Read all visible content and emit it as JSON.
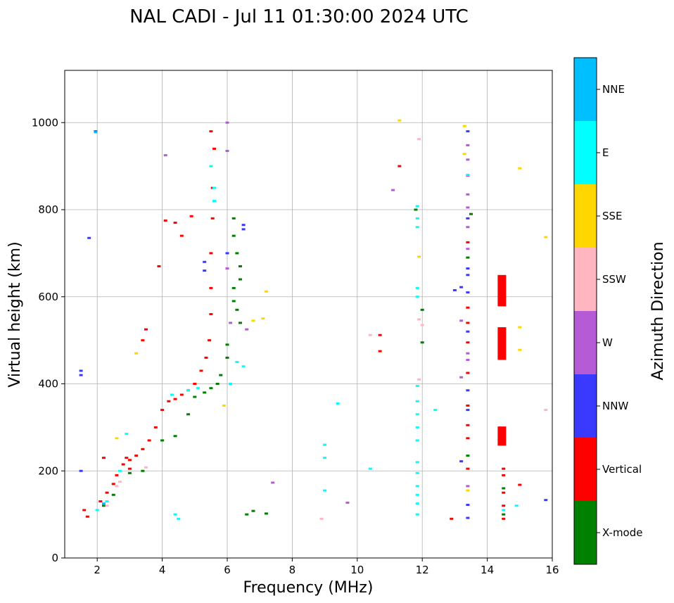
{
  "chart_data": {
    "type": "scatter",
    "title": "NAL CADI - Jul 11 01:30:00 2024 UTC",
    "xlabel": "Frequency (MHz)",
    "ylabel": "Virtual height (km)",
    "xlim": [
      1,
      16
    ],
    "ylim": [
      0,
      1120
    ],
    "xticks": [
      2,
      4,
      6,
      8,
      10,
      12,
      14,
      16
    ],
    "yticks": [
      0,
      200,
      400,
      600,
      800,
      1000
    ],
    "grid": true,
    "colorbar": {
      "label": "Azimuth Direction",
      "categories": [
        "X-mode",
        "Vertical",
        "NNW",
        "W",
        "SSW",
        "SSE",
        "E",
        "NNE"
      ],
      "colors": [
        "#008000",
        "#ff0000",
        "#3a3aff",
        "#b65bd6",
        "#ffb6c1",
        "#ffd700",
        "#00ffff",
        "#00bfff"
      ]
    },
    "series": [
      {
        "name": "Vertical",
        "points": [
          [
            1.6,
            110
          ],
          [
            1.7,
            95
          ],
          [
            2.1,
            130
          ],
          [
            2.3,
            150
          ],
          [
            2.5,
            170
          ],
          [
            2.6,
            190
          ],
          [
            2.8,
            215
          ],
          [
            2.9,
            230
          ],
          [
            3.0,
            225
          ],
          [
            3.2,
            235
          ],
          [
            3.4,
            250
          ],
          [
            3.6,
            270
          ],
          [
            3.8,
            300
          ],
          [
            4.0,
            340
          ],
          [
            4.2,
            360
          ],
          [
            4.4,
            365
          ],
          [
            4.6,
            375
          ],
          [
            4.8,
            385
          ],
          [
            5.0,
            400
          ],
          [
            5.2,
            430
          ],
          [
            5.35,
            460
          ],
          [
            5.45,
            500
          ],
          [
            5.5,
            560
          ],
          [
            5.5,
            620
          ],
          [
            5.5,
            700
          ],
          [
            5.55,
            780
          ],
          [
            5.55,
            850
          ],
          [
            5.6,
            940
          ],
          [
            5.5,
            980
          ],
          [
            4.1,
            775
          ],
          [
            4.4,
            770
          ],
          [
            4.6,
            740
          ],
          [
            4.9,
            785
          ],
          [
            3.4,
            500
          ],
          [
            3.5,
            525
          ],
          [
            3.9,
            670
          ],
          [
            2.2,
            230
          ],
          [
            3.0,
            205
          ],
          [
            10.7,
            512
          ],
          [
            10.7,
            475
          ],
          [
            11.3,
            900
          ],
          [
            13.4,
            725
          ],
          [
            13.4,
            575
          ],
          [
            13.4,
            540
          ],
          [
            13.4,
            495
          ],
          [
            13.4,
            425
          ],
          [
            13.4,
            350
          ],
          [
            13.4,
            305
          ],
          [
            13.4,
            275
          ],
          [
            13.4,
            205
          ],
          [
            12.9,
            90
          ],
          [
            14.5,
            90
          ],
          [
            14.5,
            120
          ],
          [
            14.5,
            150
          ],
          [
            14.5,
            190
          ],
          [
            14.5,
            205
          ],
          [
            15.0,
            168
          ]
        ]
      },
      {
        "name": "X-mode",
        "points": [
          [
            2.2,
            120
          ],
          [
            2.5,
            145
          ],
          [
            3.0,
            195
          ],
          [
            3.4,
            200
          ],
          [
            4.0,
            270
          ],
          [
            4.4,
            280
          ],
          [
            4.8,
            330
          ],
          [
            5.0,
            370
          ],
          [
            5.3,
            380
          ],
          [
            5.5,
            390
          ],
          [
            5.7,
            400
          ],
          [
            5.8,
            420
          ],
          [
            6.0,
            460
          ],
          [
            6.0,
            490
          ],
          [
            6.2,
            780
          ],
          [
            6.2,
            740
          ],
          [
            6.3,
            700
          ],
          [
            6.4,
            670
          ],
          [
            6.4,
            640
          ],
          [
            6.2,
            620
          ],
          [
            6.2,
            590
          ],
          [
            6.3,
            570
          ],
          [
            6.4,
            540
          ],
          [
            6.6,
            100
          ],
          [
            6.8,
            108
          ],
          [
            7.2,
            102
          ],
          [
            11.8,
            800
          ],
          [
            12.0,
            570
          ],
          [
            12.0,
            495
          ],
          [
            13.5,
            790
          ],
          [
            13.4,
            690
          ],
          [
            13.4,
            235
          ],
          [
            14.5,
            160
          ],
          [
            14.5,
            100
          ]
        ]
      },
      {
        "name": "NNW",
        "points": [
          [
            1.5,
            430
          ],
          [
            1.5,
            420
          ],
          [
            1.5,
            200
          ],
          [
            1.95,
            980
          ],
          [
            1.75,
            735
          ],
          [
            5.3,
            680
          ],
          [
            5.3,
            660
          ],
          [
            6.0,
            700
          ],
          [
            6.5,
            765
          ],
          [
            6.5,
            755
          ],
          [
            13.4,
            980
          ],
          [
            13.4,
            780
          ],
          [
            13.4,
            665
          ],
          [
            13.4,
            650
          ],
          [
            13.4,
            610
          ],
          [
            13.0,
            615
          ],
          [
            13.2,
            622
          ],
          [
            13.4,
            520
          ],
          [
            13.4,
            385
          ],
          [
            13.4,
            340
          ],
          [
            13.2,
            222
          ],
          [
            13.4,
            122
          ],
          [
            13.4,
            92
          ],
          [
            15.8,
            133
          ]
        ]
      },
      {
        "name": "W",
        "points": [
          [
            4.1,
            925
          ],
          [
            6.0,
            1000
          ],
          [
            6.0,
            935
          ],
          [
            6.0,
            665
          ],
          [
            6.1,
            540
          ],
          [
            6.6,
            525
          ],
          [
            7.4,
            173
          ],
          [
            9.7,
            127
          ],
          [
            11.1,
            845
          ],
          [
            13.4,
            948
          ],
          [
            13.4,
            915
          ],
          [
            13.4,
            878
          ],
          [
            13.4,
            835
          ],
          [
            13.4,
            805
          ],
          [
            13.4,
            760
          ],
          [
            13.4,
            710
          ],
          [
            13.4,
            470
          ],
          [
            13.4,
            455
          ],
          [
            13.4,
            165
          ],
          [
            13.2,
            545
          ],
          [
            13.2,
            415
          ]
        ]
      },
      {
        "name": "SSW",
        "points": [
          [
            2.3,
            120
          ],
          [
            2.6,
            165
          ],
          [
            2.7,
            175
          ],
          [
            3.5,
            208
          ],
          [
            8.9,
            90
          ],
          [
            10.4,
            512
          ],
          [
            11.9,
            962
          ],
          [
            11.9,
            548
          ],
          [
            11.9,
            410
          ],
          [
            12.0,
            535
          ],
          [
            15.8,
            340
          ]
        ]
      },
      {
        "name": "SSE",
        "points": [
          [
            2.6,
            275
          ],
          [
            3.2,
            470
          ],
          [
            5.9,
            350
          ],
          [
            6.8,
            545
          ],
          [
            7.1,
            550
          ],
          [
            7.2,
            612
          ],
          [
            11.3,
            1005
          ],
          [
            11.9,
            692
          ],
          [
            13.3,
            992
          ],
          [
            13.3,
            928
          ],
          [
            13.4,
            155
          ],
          [
            15.0,
            530
          ],
          [
            15.0,
            478
          ],
          [
            15.0,
            895
          ],
          [
            15.8,
            737
          ]
        ]
      },
      {
        "name": "E",
        "points": [
          [
            2.0,
            110
          ],
          [
            2.3,
            130
          ],
          [
            2.7,
            200
          ],
          [
            2.9,
            285
          ],
          [
            4.3,
            375
          ],
          [
            4.4,
            100
          ],
          [
            4.5,
            90
          ],
          [
            4.8,
            385
          ],
          [
            5.1,
            390
          ],
          [
            5.5,
            900
          ],
          [
            5.6,
            850
          ],
          [
            5.6,
            820
          ],
          [
            6.1,
            400
          ],
          [
            6.3,
            450
          ],
          [
            6.5,
            440
          ],
          [
            9.0,
            260
          ],
          [
            9.0,
            230
          ],
          [
            9.0,
            155
          ],
          [
            9.4,
            355
          ],
          [
            10.4,
            205
          ],
          [
            11.85,
            808
          ],
          [
            11.85,
            780
          ],
          [
            11.85,
            760
          ],
          [
            11.85,
            620
          ],
          [
            11.85,
            600
          ],
          [
            11.85,
            395
          ],
          [
            11.85,
            360
          ],
          [
            11.85,
            330
          ],
          [
            11.85,
            300
          ],
          [
            11.85,
            270
          ],
          [
            11.85,
            220
          ],
          [
            11.85,
            195
          ],
          [
            11.85,
            165
          ],
          [
            11.85,
            145
          ],
          [
            11.85,
            125
          ],
          [
            11.85,
            100
          ],
          [
            12.4,
            340
          ],
          [
            13.4,
            880
          ],
          [
            14.5,
            110
          ],
          [
            14.9,
            120
          ]
        ]
      },
      {
        "name": "NNE",
        "points": [
          [
            1.95,
            978
          ],
          [
            2.2,
            125
          ]
        ]
      }
    ],
    "blocks": [
      {
        "series": "Vertical",
        "x": 14.45,
        "y_from": 578,
        "y_to": 650
      },
      {
        "series": "Vertical",
        "x": 14.45,
        "y_from": 455,
        "y_to": 530
      },
      {
        "series": "Vertical",
        "x": 14.45,
        "y_from": 258,
        "y_to": 302
      }
    ]
  }
}
